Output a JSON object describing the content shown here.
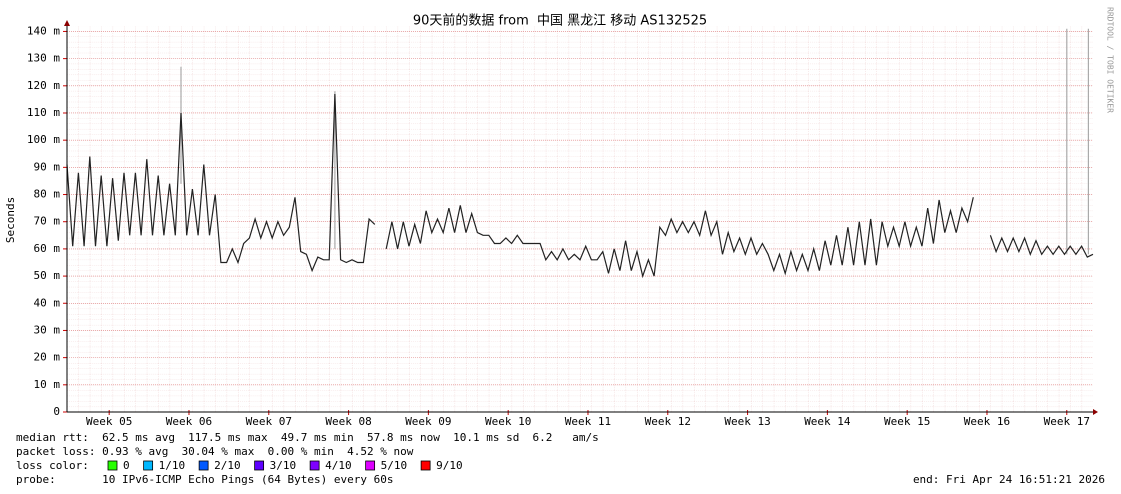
{
  "chart_data": {
    "type": "line",
    "title": "90天前的数据 from  中国 黑龙江 移动 AS132525",
    "y_label": "Seconds",
    "watermark": "RRDTOOL / TOBI OETIKER",
    "ylim": [
      0,
      142
    ],
    "yticks": [
      0,
      {
        "value": 10,
        "label": "10 m"
      },
      {
        "value": 20,
        "label": "20 m"
      },
      {
        "value": 30,
        "label": "30 m"
      },
      {
        "value": 40,
        "label": "40 m"
      },
      {
        "value": 50,
        "label": "50 m"
      },
      {
        "value": 60,
        "label": "60 m"
      },
      {
        "value": 70,
        "label": "70 m"
      },
      {
        "value": 80,
        "label": "80 m"
      },
      {
        "value": 90,
        "label": "90 m"
      },
      {
        "value": 100,
        "label": "100 m"
      },
      {
        "value": 110,
        "label": "110 m"
      },
      {
        "value": 120,
        "label": "120 m"
      },
      {
        "value": 130,
        "label": "130 m"
      },
      {
        "value": 140,
        "label": "140 m"
      }
    ],
    "xlim": [
      0,
      90
    ],
    "xticks": [
      {
        "value": 3.7,
        "label": "Week 05"
      },
      {
        "value": 10.7,
        "label": "Week 06"
      },
      {
        "value": 17.7,
        "label": "Week 07"
      },
      {
        "value": 24.7,
        "label": "Week 08"
      },
      {
        "value": 31.7,
        "label": "Week 09"
      },
      {
        "value": 38.7,
        "label": "Week 10"
      },
      {
        "value": 45.7,
        "label": "Week 11"
      },
      {
        "value": 52.7,
        "label": "Week 12"
      },
      {
        "value": 59.7,
        "label": "Week 13"
      },
      {
        "value": 66.7,
        "label": "Week 14"
      },
      {
        "value": 73.7,
        "label": "Week 15"
      },
      {
        "value": 80.7,
        "label": "Week 16"
      },
      {
        "value": 87.7,
        "label": "Week 17"
      }
    ],
    "grid": true,
    "series": [
      {
        "color": "#222222",
        "x": [
          0,
          0.5,
          1,
          1.5,
          2,
          2.5,
          3,
          3.5,
          4,
          4.5,
          5,
          5.5,
          6,
          6.5,
          7,
          7.5,
          8,
          8.5,
          9,
          9.5,
          10,
          10.5,
          11,
          11.5,
          12,
          12.5,
          13,
          13.5,
          14,
          14.5,
          15,
          15.5,
          16,
          16.5,
          17,
          17.5,
          18,
          18.5,
          19,
          19.5,
          20,
          20.5,
          21,
          21.5,
          22,
          22.5,
          23,
          23.5,
          24,
          24.5,
          25,
          25.5,
          26,
          26.5,
          27,
          27.5,
          28,
          28.5,
          29,
          29.5,
          30,
          30.5,
          31,
          31.5,
          32,
          32.5,
          33,
          33.5,
          34,
          34.5,
          35,
          35.5,
          36,
          36.5,
          37,
          37.5,
          38,
          38.5,
          39,
          39.5,
          40,
          40.5,
          41,
          41.5,
          42,
          42.5,
          43,
          43.5,
          44,
          44.5,
          45,
          45.5,
          46,
          46.5,
          47,
          47.5,
          48,
          48.5,
          49,
          49.5,
          50,
          50.5,
          51,
          51.5,
          52,
          52.5,
          53,
          53.5,
          54,
          54.5,
          55,
          55.5,
          56,
          56.5,
          57,
          57.5,
          58,
          58.5,
          59,
          59.5,
          60,
          60.5,
          61,
          61.5,
          62,
          62.5,
          63,
          63.5,
          64,
          64.5,
          65,
          65.5,
          66,
          66.5,
          67,
          67.5,
          68,
          68.5,
          69,
          69.5,
          70,
          70.5,
          71,
          71.5,
          72,
          72.5,
          73,
          73.5,
          74,
          74.5,
          75,
          75.5,
          76,
          76.5,
          77,
          77.5,
          78,
          78.5,
          79,
          79.5,
          80,
          80.5,
          81,
          81.5,
          82,
          82.5,
          83,
          83.5,
          84,
          84.5,
          85,
          85.5,
          86,
          86.5,
          87,
          87.5,
          88,
          88.5,
          89,
          89.5,
          90
        ],
        "values": [
          91,
          61,
          88,
          61,
          94,
          61,
          87,
          61,
          86,
          63,
          88,
          65,
          88,
          65,
          93,
          65,
          87,
          65,
          84,
          65,
          110,
          65,
          82,
          65,
          91,
          65,
          80,
          55,
          55,
          60,
          55,
          62,
          64,
          71,
          64,
          70,
          64,
          70,
          65,
          68,
          79,
          59,
          58,
          52,
          57,
          56,
          56,
          117,
          56,
          55,
          56,
          55,
          55,
          71,
          69,
          null,
          60,
          70,
          60,
          70,
          61,
          69,
          62,
          74,
          66,
          71,
          66,
          75,
          66,
          76,
          66,
          73,
          66,
          65,
          65,
          62,
          62,
          64,
          62,
          65,
          62,
          62,
          62,
          62,
          56,
          59,
          56,
          60,
          56,
          58,
          56,
          61,
          56,
          56,
          59,
          51,
          60,
          52,
          63,
          52,
          59,
          50,
          56,
          50,
          68,
          65,
          71,
          66,
          70,
          66,
          70,
          65,
          74,
          65,
          70,
          58,
          66,
          59,
          64,
          58,
          64,
          58,
          62,
          58,
          52,
          58,
          51,
          59,
          52,
          58,
          52,
          60,
          52,
          63,
          54,
          65,
          54,
          68,
          54,
          70,
          54,
          71,
          54,
          70,
          61,
          68,
          61,
          70,
          61,
          68,
          61,
          75,
          62,
          78,
          66,
          74,
          66,
          75,
          70,
          79,
          null,
          null,
          65,
          59,
          64,
          59,
          64,
          59,
          64,
          58,
          63,
          58,
          61,
          58,
          61,
          58,
          61,
          58,
          61,
          57,
          58
        ]
      },
      {
        "color": "#aaaaaa",
        "x": [
          10,
          10,
          10.2,
          23.5,
          23.5,
          23.7,
          87.7,
          87.7,
          87.9,
          89.6,
          89.6
        ],
        "values": [
          84,
          127,
          null,
          60,
          118,
          null,
          58,
          141,
          null,
          58,
          141
        ]
      }
    ],
    "stats": {
      "median_rtt": "median rtt:  62.5 ms avg  117.5 ms max  49.7 ms min  57.8 ms now  10.1 ms sd  6.2   am/s",
      "packet_loss": "packet loss: 0.93 % avg  30.04 % max  0.00 % min  4.52 % now",
      "loss_color_label": "loss color:",
      "loss_colors": [
        {
          "label": "0",
          "color": "#26ff00"
        },
        {
          "label": "1/10",
          "color": "#00b8ff"
        },
        {
          "label": "2/10",
          "color": "#0059ff"
        },
        {
          "label": "3/10",
          "color": "#5e00ff"
        },
        {
          "label": "4/10",
          "color": "#7e00ff"
        },
        {
          "label": "5/10",
          "color": "#dd00ff"
        },
        {
          "label": "9/10",
          "color": "#ff0000"
        }
      ],
      "probe": "probe:       10 IPv6-ICMP Echo Pings (64 Bytes) every 60s",
      "end": "end: Fri Apr 24 16:51:21 2026"
    }
  }
}
